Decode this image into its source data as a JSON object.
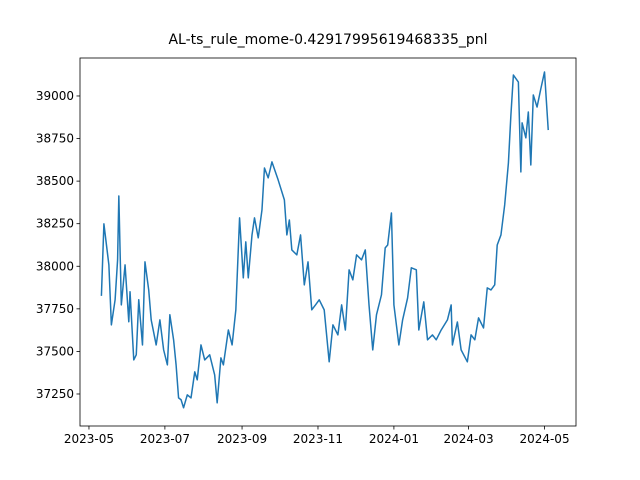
{
  "chart_data": {
    "type": "line",
    "title": "AL-ts_rule_mome-0.42917995619468335_pnl",
    "x": [
      19488,
      19490,
      19494,
      19496,
      19499,
      19501,
      19502,
      19504,
      19507,
      19510,
      19511,
      19514,
      19516,
      19518,
      19521,
      19523,
      19526,
      19528,
      19532,
      19535,
      19538,
      19541,
      19543,
      19546,
      19548,
      19550,
      19552,
      19554,
      19557,
      19560,
      19563,
      19565,
      19568,
      19571,
      19575,
      19579,
      19581,
      19584,
      19586,
      19590,
      19593,
      19596,
      19599,
      19602,
      19604,
      19606,
      19609,
      19611,
      19614,
      19617,
      19619,
      19622,
      19625,
      19630,
      19635,
      19637,
      19639,
      19641,
      19645,
      19648,
      19651,
      19654,
      19657,
      19660,
      19663,
      19667,
      19671,
      19674,
      19678,
      19681,
      19684,
      19687,
      19690,
      19693,
      19697,
      19700,
      19703,
      19706,
      19709,
      19713,
      19716,
      19718,
      19721,
      19723,
      19727,
      19730,
      19734,
      19737,
      19741,
      19743,
      19747,
      19750,
      19754,
      19757,
      19761,
      19766,
      19769,
      19770,
      19774,
      19777,
      19782,
      19785,
      19788,
      19791,
      19795,
      19798,
      19801,
      19804,
      19806,
      19809,
      19812,
      19815,
      19817,
      19819,
      19823,
      19825,
      19826,
      19829,
      19831,
      19833,
      19835,
      19838,
      19841,
      19844,
      19847
    ],
    "series": [
      {
        "color": "#1f77b4",
        "values": [
          37826,
          38249,
          38008,
          37656,
          37803,
          38037,
          38413,
          37773,
          38008,
          37674,
          37850,
          37450,
          37480,
          37803,
          37538,
          38026,
          37861,
          37685,
          37538,
          37685,
          37509,
          37421,
          37715,
          37568,
          37421,
          37227,
          37216,
          37169,
          37245,
          37227,
          37380,
          37333,
          37538,
          37450,
          37480,
          37362,
          37198,
          37462,
          37421,
          37626,
          37538,
          37744,
          38284,
          37932,
          38143,
          37932,
          38184,
          38284,
          38167,
          38331,
          38577,
          38519,
          38613,
          38507,
          38390,
          38184,
          38272,
          38096,
          38067,
          38184,
          37891,
          38026,
          37744,
          37773,
          37803,
          37744,
          37439,
          37656,
          37597,
          37773,
          37626,
          37979,
          37920,
          38067,
          38038,
          38096,
          37773,
          37509,
          37715,
          37832,
          38108,
          38125,
          38313,
          37773,
          37538,
          37685,
          37814,
          37991,
          37979,
          37626,
          37791,
          37568,
          37597,
          37568,
          37626,
          37685,
          37773,
          37538,
          37673,
          37509,
          37439,
          37597,
          37568,
          37697,
          37638,
          37873,
          37861,
          37891,
          38125,
          38184,
          38360,
          38607,
          38888,
          39123,
          39082,
          38554,
          38842,
          38754,
          38906,
          38595,
          39006,
          38935,
          39041,
          39141,
          38800
        ]
      }
    ],
    "xlim": [
      19470.8,
      19869.3
    ],
    "xticks": [
      {
        "value": 19478,
        "label": "2023-05"
      },
      {
        "value": 19539,
        "label": "2023-07"
      },
      {
        "value": 19601,
        "label": "2023-09"
      },
      {
        "value": 19662,
        "label": "2023-11"
      },
      {
        "value": 19723,
        "label": "2024-01"
      },
      {
        "value": 19783,
        "label": "2024-03"
      },
      {
        "value": 19844,
        "label": "2024-05"
      }
    ],
    "ylim": [
      37062,
      39223
    ],
    "yticks": [
      37250,
      37500,
      37750,
      38000,
      38250,
      38500,
      38750,
      39000
    ],
    "grid": false
  }
}
